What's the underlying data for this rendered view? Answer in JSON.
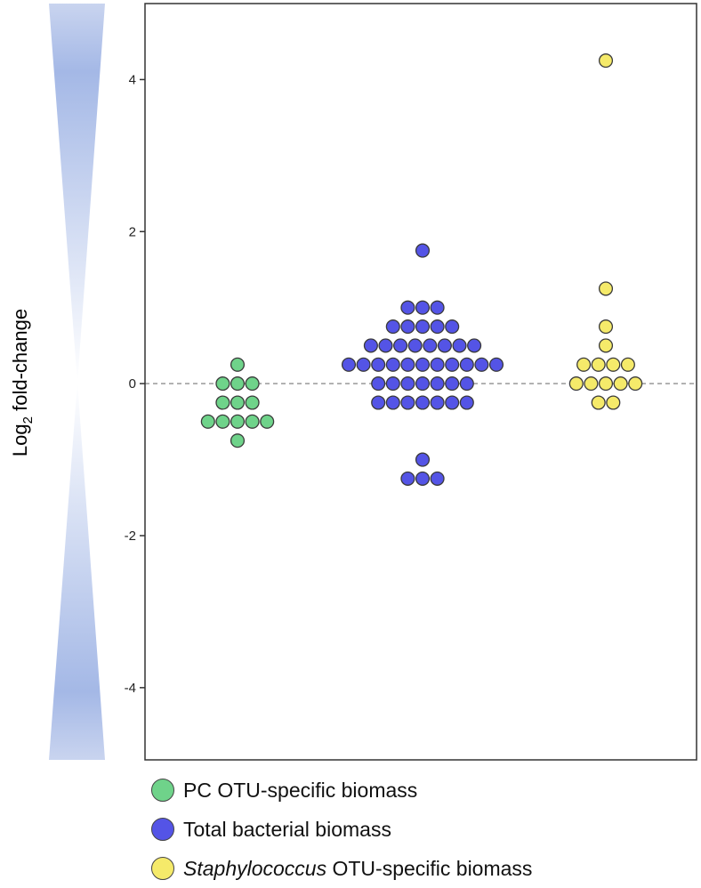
{
  "chart_data": {
    "type": "scatter",
    "title": "",
    "ylabel": "Log",
    "ylabel_sub": "2",
    "ylabel_rest": " fold-change",
    "ylim": [
      -4.95,
      5.0
    ],
    "yticks": [
      4,
      2,
      0,
      -2,
      -4
    ],
    "ytick_labels": [
      "4",
      "2",
      "0",
      "-2",
      "-4"
    ],
    "reference_line": 0,
    "grid": false,
    "legend_position": "bottom-left",
    "series": [
      {
        "name": "PC OTU-specific biomass",
        "color": "#6fd38a",
        "values": [
          0.25,
          0,
          0,
          0,
          -0.25,
          -0.25,
          -0.25,
          -0.5,
          -0.5,
          -0.5,
          -0.5,
          -0.5,
          -0.75
        ]
      },
      {
        "name": "Total bacterial biomass",
        "color": "#5454e6",
        "values": [
          1.75,
          1.0,
          1.0,
          1.0,
          0.75,
          0.75,
          0.75,
          0.75,
          0.75,
          0.5,
          0.5,
          0.5,
          0.5,
          0.5,
          0.5,
          0.5,
          0.5,
          0.25,
          0.25,
          0.25,
          0.25,
          0.25,
          0.25,
          0.25,
          0.25,
          0.25,
          0.25,
          0.25,
          0,
          0,
          0,
          0,
          0,
          0,
          0,
          -0.25,
          -0.25,
          -0.25,
          -0.25,
          -0.25,
          -0.25,
          -0.25,
          -1.0,
          -1.25,
          -1.25,
          -1.25
        ]
      },
      {
        "name": "Staphylococcus OTU-specific biomass",
        "name_italic": "Staphylococcus",
        "name_rest": " OTU-specific biomass",
        "color": "#f5ea6a",
        "values": [
          4.25,
          1.25,
          0.75,
          0.5,
          0.25,
          0.25,
          0.25,
          0.25,
          0,
          0,
          0,
          0,
          0,
          -0.25,
          -0.25
        ]
      }
    ]
  }
}
